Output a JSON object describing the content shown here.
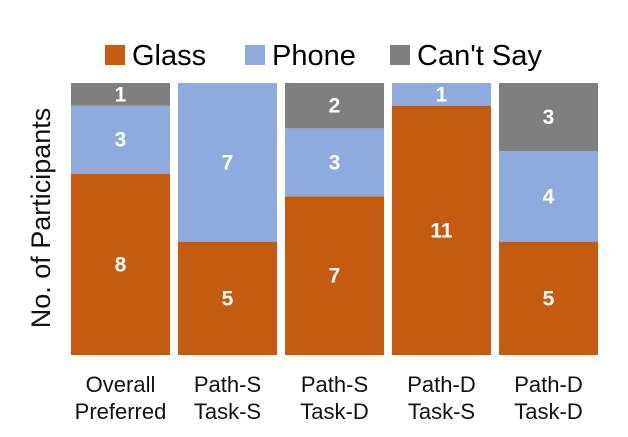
{
  "chart_data": {
    "type": "bar",
    "stacked": true,
    "categories": [
      [
        "Overall",
        "Preferred"
      ],
      [
        "Path-S",
        "Task-S"
      ],
      [
        "Path-S",
        "Task-D"
      ],
      [
        "Path-D",
        "Task-S"
      ],
      [
        "Path-D",
        "Task-D"
      ]
    ],
    "series": [
      {
        "name": "Glass",
        "color": "#C55A11",
        "values": [
          8,
          5,
          7,
          11,
          5
        ]
      },
      {
        "name": "Phone",
        "color": "#8FAADC",
        "values": [
          3,
          7,
          3,
          1,
          4
        ]
      },
      {
        "name": "Can't Say",
        "color": "#7F7F7F",
        "values": [
          1,
          0,
          2,
          0,
          3
        ]
      }
    ],
    "title": "",
    "xlabel": "",
    "ylabel": "No. of Participants",
    "ylim": [
      0,
      12
    ],
    "grid": false,
    "legend": "top"
  }
}
